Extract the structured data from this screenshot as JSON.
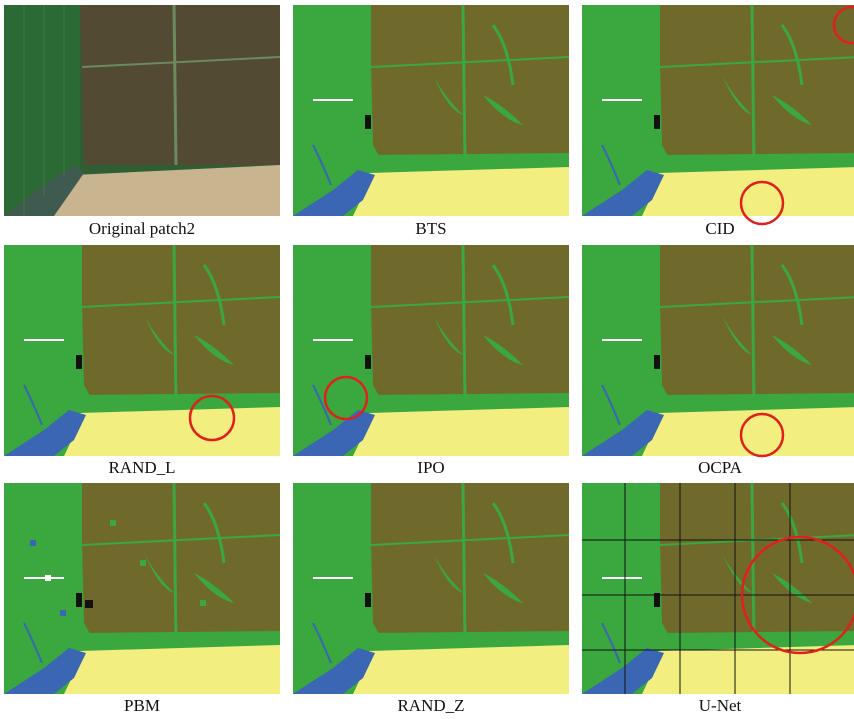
{
  "panels": [
    {
      "caption": "Original patch2"
    },
    {
      "caption": "BTS"
    },
    {
      "caption": "CID"
    },
    {
      "caption": "RAND_L"
    },
    {
      "caption": "IPO"
    },
    {
      "caption": "OCPA"
    },
    {
      "caption": "PBM"
    },
    {
      "caption": "RAND_Z"
    },
    {
      "caption": "U-Net"
    }
  ]
}
